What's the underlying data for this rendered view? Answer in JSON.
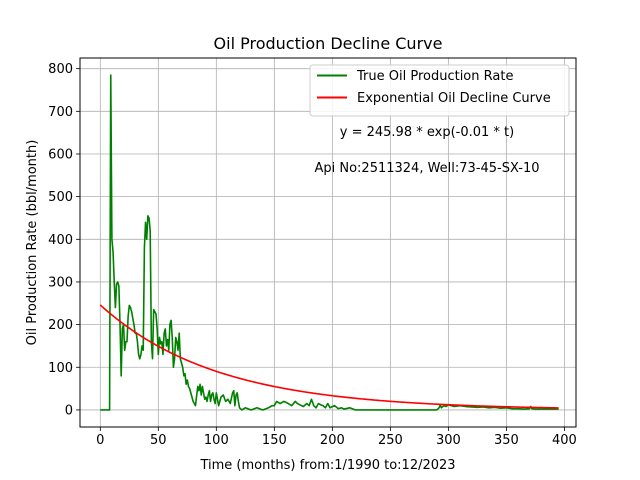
{
  "chart_data": {
    "type": "line",
    "title": "Oil Production Decline Curve",
    "xlabel": "Time (months) from:1/1990 to:12/2023",
    "ylabel": "Oil Production Rate (bbl/month)",
    "xlim": [
      -17.5,
      410
    ],
    "ylim": [
      -40,
      825
    ],
    "xticks": [
      0,
      50,
      100,
      150,
      200,
      250,
      300,
      350,
      400
    ],
    "yticks": [
      0,
      100,
      200,
      300,
      400,
      500,
      600,
      700,
      800
    ],
    "grid": true,
    "legend_position": "top-right",
    "annotations": [
      "y = 245.98 * exp(-0.01 * t)",
      "Api No:2511324, Well:73-45-SX-10"
    ],
    "series": [
      {
        "name": "True Oil Production Rate",
        "color": "#008000",
        "points": [
          [
            0,
            0
          ],
          [
            4,
            0
          ],
          [
            8,
            0
          ],
          [
            9,
            785
          ],
          [
            10,
            400
          ],
          [
            11,
            370
          ],
          [
            12,
            300
          ],
          [
            13,
            240
          ],
          [
            14,
            295
          ],
          [
            15,
            300
          ],
          [
            16,
            290
          ],
          [
            17,
            200
          ],
          [
            18,
            80
          ],
          [
            19,
            190
          ],
          [
            20,
            200
          ],
          [
            21,
            140
          ],
          [
            22,
            160
          ],
          [
            23,
            160
          ],
          [
            24,
            220
          ],
          [
            25,
            245
          ],
          [
            26,
            240
          ],
          [
            27,
            230
          ],
          [
            28,
            215
          ],
          [
            29,
            200
          ],
          [
            30,
            180
          ],
          [
            31,
            180
          ],
          [
            32,
            160
          ],
          [
            33,
            130
          ],
          [
            34,
            120
          ],
          [
            35,
            130
          ],
          [
            36,
            150
          ],
          [
            37,
            140
          ],
          [
            38,
            380
          ],
          [
            39,
            440
          ],
          [
            40,
            400
          ],
          [
            41,
            455
          ],
          [
            42,
            450
          ],
          [
            43,
            420
          ],
          [
            44,
            160
          ],
          [
            45,
            120
          ],
          [
            46,
            235
          ],
          [
            47,
            230
          ],
          [
            48,
            225
          ],
          [
            49,
            190
          ],
          [
            50,
            130
          ],
          [
            51,
            170
          ],
          [
            52,
            155
          ],
          [
            53,
            160
          ],
          [
            54,
            130
          ],
          [
            55,
            180
          ],
          [
            56,
            190
          ],
          [
            57,
            150
          ],
          [
            58,
            165
          ],
          [
            59,
            140
          ],
          [
            60,
            200
          ],
          [
            61,
            210
          ],
          [
            62,
            170
          ],
          [
            63,
            100
          ],
          [
            64,
            120
          ],
          [
            65,
            170
          ],
          [
            66,
            160
          ],
          [
            67,
            140
          ],
          [
            68,
            180
          ],
          [
            69,
            120
          ],
          [
            70,
            110
          ],
          [
            71,
            100
          ],
          [
            72,
            80
          ],
          [
            73,
            85
          ],
          [
            74,
            60
          ],
          [
            75,
            70
          ],
          [
            76,
            55
          ],
          [
            77,
            50
          ],
          [
            78,
            40
          ],
          [
            79,
            30
          ],
          [
            80,
            20
          ],
          [
            82,
            10
          ],
          [
            84,
            55
          ],
          [
            85,
            45
          ],
          [
            86,
            60
          ],
          [
            87,
            35
          ],
          [
            88,
            55
          ],
          [
            89,
            40
          ],
          [
            90,
            25
          ],
          [
            91,
            30
          ],
          [
            92,
            20
          ],
          [
            93,
            35
          ],
          [
            94,
            45
          ],
          [
            95,
            20
          ],
          [
            96,
            35
          ],
          [
            97,
            40
          ],
          [
            98,
            25
          ],
          [
            99,
            15
          ],
          [
            100,
            40
          ],
          [
            102,
            10
          ],
          [
            104,
            30
          ],
          [
            106,
            35
          ],
          [
            108,
            20
          ],
          [
            110,
            25
          ],
          [
            112,
            15
          ],
          [
            114,
            40
          ],
          [
            115,
            45
          ],
          [
            116,
            10
          ],
          [
            117,
            35
          ],
          [
            118,
            40
          ],
          [
            119,
            20
          ],
          [
            120,
            5
          ],
          [
            122,
            0
          ],
          [
            125,
            5
          ],
          [
            130,
            0
          ],
          [
            135,
            5
          ],
          [
            140,
            0
          ],
          [
            145,
            5
          ],
          [
            148,
            10
          ],
          [
            150,
            10
          ],
          [
            152,
            20
          ],
          [
            155,
            15
          ],
          [
            158,
            20
          ],
          [
            160,
            18
          ],
          [
            162,
            15
          ],
          [
            165,
            10
          ],
          [
            168,
            20
          ],
          [
            170,
            15
          ],
          [
            172,
            12
          ],
          [
            175,
            8
          ],
          [
            178,
            15
          ],
          [
            180,
            10
          ],
          [
            182,
            25
          ],
          [
            184,
            10
          ],
          [
            186,
            5
          ],
          [
            188,
            15
          ],
          [
            190,
            12
          ],
          [
            192,
            10
          ],
          [
            194,
            5
          ],
          [
            196,
            15
          ],
          [
            198,
            5
          ],
          [
            200,
            8
          ],
          [
            202,
            10
          ],
          [
            205,
            3
          ],
          [
            208,
            5
          ],
          [
            210,
            2
          ],
          [
            215,
            5
          ],
          [
            220,
            0
          ],
          [
            230,
            0
          ],
          [
            240,
            0
          ],
          [
            250,
            0
          ],
          [
            260,
            0
          ],
          [
            270,
            0
          ],
          [
            280,
            0
          ],
          [
            290,
            0
          ],
          [
            292,
            5
          ],
          [
            293,
            12
          ],
          [
            294,
            5
          ],
          [
            296,
            10
          ],
          [
            298,
            8
          ],
          [
            300,
            12
          ],
          [
            305,
            8
          ],
          [
            310,
            10
          ],
          [
            315,
            8
          ],
          [
            320,
            7
          ],
          [
            325,
            6
          ],
          [
            330,
            7
          ],
          [
            335,
            5
          ],
          [
            340,
            6
          ],
          [
            345,
            4
          ],
          [
            350,
            5
          ],
          [
            355,
            3
          ],
          [
            360,
            3
          ],
          [
            365,
            2
          ],
          [
            370,
            3
          ],
          [
            371,
            8
          ],
          [
            372,
            3
          ],
          [
            375,
            2
          ],
          [
            380,
            2
          ],
          [
            385,
            2
          ],
          [
            390,
            2
          ],
          [
            395,
            2
          ]
        ]
      },
      {
        "name": "Exponential Oil Decline Curve",
        "color": "#ff0000",
        "function": {
          "a": 245.98,
          "b": -0.01,
          "t_start": 0,
          "t_end": 395
        }
      }
    ]
  }
}
